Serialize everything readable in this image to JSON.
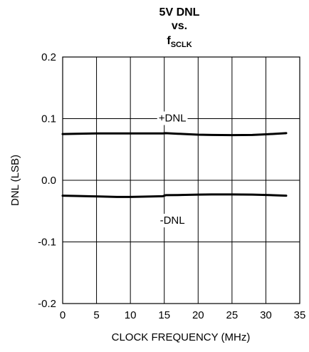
{
  "chart_data": {
    "type": "line",
    "title_lines": [
      "5V DNL",
      "vs."
    ],
    "title_symbol": {
      "main": "f",
      "subscript": "SCLK"
    },
    "xlabel": "CLOCK FREQUENCY (MHz)",
    "ylabel": "DNL (LSB)",
    "xlim": [
      0,
      35
    ],
    "ylim": [
      -0.2,
      0.2
    ],
    "xticks": [
      0,
      5,
      10,
      15,
      20,
      25,
      30,
      35
    ],
    "xtick_labels": [
      "0",
      "5",
      "10",
      "15",
      "20",
      "25",
      "30",
      "35"
    ],
    "yticks": [
      0.2,
      0.1,
      0.0,
      -0.1,
      -0.2
    ],
    "ytick_labels": [
      "0.2",
      "0.1",
      "0.0",
      "-0.1",
      "-0.2"
    ],
    "grid": true,
    "series_color": "#000000",
    "series": [
      {
        "x": [
          0,
          2,
          5,
          8,
          10,
          14.8,
          15.2,
          17,
          20,
          22,
          25,
          28,
          30,
          33
        ],
        "y": [
          0.075,
          0.0755,
          0.076,
          0.076,
          0.076,
          0.076,
          0.0765,
          0.0755,
          0.074,
          0.0735,
          0.0732,
          0.0735,
          0.0745,
          0.0765
        ]
      },
      {
        "x": [
          0,
          2,
          5,
          8,
          10,
          14.8,
          15.2,
          17,
          20,
          22,
          25,
          28,
          30,
          33
        ],
        "y": [
          -0.025,
          -0.0255,
          -0.0262,
          -0.027,
          -0.027,
          -0.0258,
          -0.0242,
          -0.024,
          -0.0232,
          -0.023,
          -0.023,
          -0.0232,
          -0.0238,
          -0.025
        ]
      }
    ],
    "annotations": [
      {
        "text": "+DNL",
        "x": 16.2,
        "y": 0.1
      },
      {
        "text": "-DNL",
        "x": 16.2,
        "y": -0.066
      }
    ]
  }
}
